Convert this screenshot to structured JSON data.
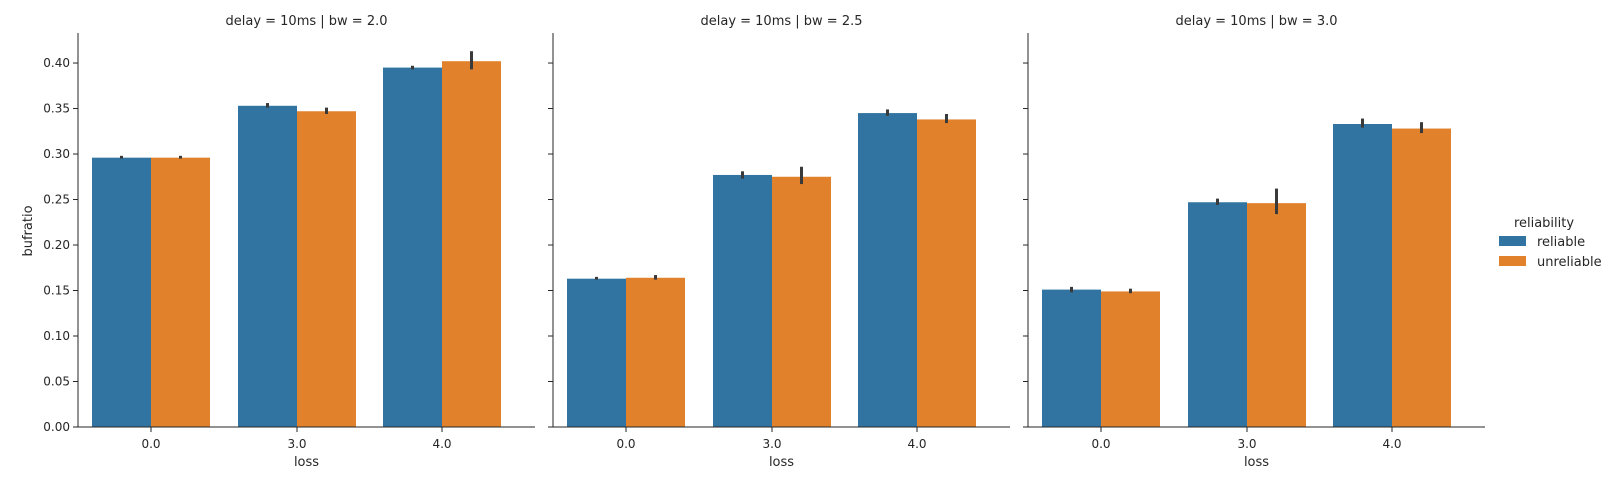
{
  "chart_data": {
    "type": "bar",
    "ylabel": "bufratio",
    "xlabel": "loss",
    "ylim": [
      0,
      0.433
    ],
    "yticks": [
      "0.00",
      "0.05",
      "0.10",
      "0.15",
      "0.20",
      "0.25",
      "0.30",
      "0.35",
      "0.40"
    ],
    "categories": [
      "0.0",
      "3.0",
      "4.0"
    ],
    "legend": {
      "title": "reliability",
      "position": "right",
      "entries": [
        {
          "name": "reliable",
          "color": "#3274a1"
        },
        {
          "name": "unreliable",
          "color": "#e1812c"
        }
      ]
    },
    "grid": false,
    "panels": [
      {
        "title": "delay = 10ms | bw = 2.0",
        "series": [
          {
            "name": "reliable",
            "values": [
              0.296,
              0.353,
              0.395
            ],
            "err_low": [
              0.295,
              0.351,
              0.393
            ],
            "err_high": [
              0.298,
              0.356,
              0.397
            ]
          },
          {
            "name": "unreliable",
            "values": [
              0.296,
              0.347,
              0.402
            ],
            "err_low": [
              0.295,
              0.344,
              0.393
            ],
            "err_high": [
              0.298,
              0.351,
              0.413
            ]
          }
        ]
      },
      {
        "title": "delay = 10ms | bw = 2.5",
        "series": [
          {
            "name": "reliable",
            "values": [
              0.163,
              0.277,
              0.345
            ],
            "err_low": [
              0.162,
              0.273,
              0.342
            ],
            "err_high": [
              0.165,
              0.281,
              0.349
            ]
          },
          {
            "name": "unreliable",
            "values": [
              0.164,
              0.275,
              0.338
            ],
            "err_low": [
              0.162,
              0.267,
              0.334
            ],
            "err_high": [
              0.167,
              0.286,
              0.344
            ]
          }
        ]
      },
      {
        "title": "delay = 10ms | bw = 3.0",
        "series": [
          {
            "name": "reliable",
            "values": [
              0.151,
              0.247,
              0.333
            ],
            "err_low": [
              0.148,
              0.244,
              0.329
            ],
            "err_high": [
              0.154,
              0.251,
              0.339
            ]
          },
          {
            "name": "unreliable",
            "values": [
              0.149,
              0.246,
              0.328
            ],
            "err_low": [
              0.147,
              0.234,
              0.323
            ],
            "err_high": [
              0.152,
              0.262,
              0.335
            ]
          }
        ]
      }
    ]
  }
}
